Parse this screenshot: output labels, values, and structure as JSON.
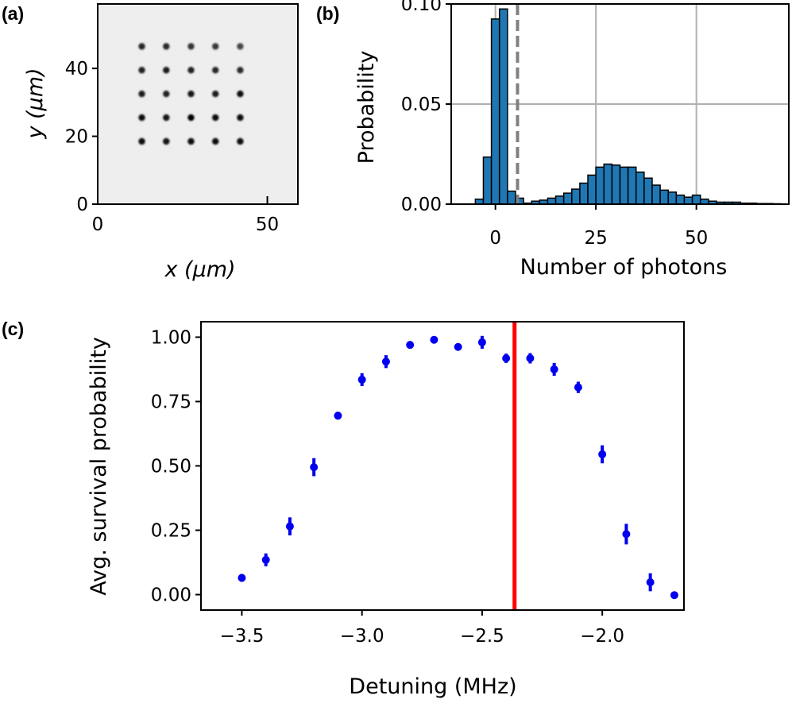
{
  "chart_data": [
    {
      "panel": "(a)",
      "type": "scatter",
      "title": "",
      "xlabel": "x (μm)",
      "ylabel": "y (μm)",
      "xlim": [
        0,
        59
      ],
      "ylim": [
        0,
        59
      ],
      "xticks": [
        0,
        50
      ],
      "yticks": [
        0,
        20,
        40
      ],
      "grid": false,
      "description_values": "5x5 atom fluorescence array",
      "x": [
        13,
        20.2,
        27.5,
        34.7,
        42
      ],
      "y": [
        18.5,
        25.5,
        32.5,
        39.5,
        46.5
      ],
      "intensity": [
        [
          0.92,
          0.85,
          0.95,
          0.9,
          0.95
        ],
        [
          0.9,
          0.85,
          0.98,
          0.9,
          0.95
        ],
        [
          0.8,
          0.75,
          0.85,
          0.78,
          0.9
        ],
        [
          0.75,
          0.8,
          0.75,
          0.72,
          0.7
        ],
        [
          0.72,
          0.7,
          0.62,
          0.6,
          0.5
        ]
      ]
    },
    {
      "panel": "(b)",
      "type": "bar",
      "title": "",
      "xlabel": "Number of photons",
      "ylabel": "Probability",
      "xlim": [
        -11,
        73
      ],
      "ylim": [
        0,
        0.1
      ],
      "xticks": [
        0,
        25,
        50
      ],
      "yticks": [
        "0.00",
        "0.05",
        "0.10"
      ],
      "grid": true,
      "threshold": 5.5,
      "bin_width": 2,
      "bin_starts": [
        -5,
        -3,
        -1,
        1,
        3,
        5,
        7,
        9,
        11,
        13,
        15,
        17,
        19,
        21,
        23,
        25,
        27,
        29,
        31,
        33,
        35,
        37,
        39,
        41,
        43,
        45,
        47,
        49,
        51,
        53,
        55,
        57,
        59,
        61,
        63,
        65,
        67,
        69
      ],
      "values": [
        0.0025,
        0.0235,
        0.0925,
        0.0975,
        0.0065,
        0.003,
        0.0005,
        0.0015,
        0.002,
        0.003,
        0.004,
        0.0055,
        0.0075,
        0.0105,
        0.0145,
        0.0185,
        0.02,
        0.0195,
        0.0185,
        0.0185,
        0.016,
        0.013,
        0.0095,
        0.007,
        0.006,
        0.0045,
        0.0035,
        0.0045,
        0.0025,
        0.0015,
        0.001,
        0.001,
        0.001,
        0.0005,
        0.0005,
        0.0003,
        0.0003,
        0.0002
      ]
    },
    {
      "panel": "(c)",
      "type": "scatter",
      "title": "",
      "xlabel": "Detuning (MHz)",
      "ylabel": "Avg. survival probability",
      "xlim": [
        -3.67,
        -1.66
      ],
      "ylim": [
        -0.06,
        1.06
      ],
      "xticks": [
        "−3.5",
        "−3.0",
        "−2.5",
        "−2.0"
      ],
      "xtick_values": [
        -3.5,
        -3.0,
        -2.5,
        -2.0
      ],
      "yticks": [
        "0.00",
        "0.25",
        "0.50",
        "0.75",
        "1.00"
      ],
      "ytick_values": [
        0,
        0.25,
        0.5,
        0.75,
        1.0
      ],
      "grid": false,
      "vline": -2.365,
      "x": [
        -3.5,
        -3.4,
        -3.3,
        -3.2,
        -3.1,
        -3.0,
        -2.9,
        -2.8,
        -2.7,
        -2.6,
        -2.5,
        -2.4,
        -2.3,
        -2.2,
        -2.1,
        -2.0,
        -1.9,
        -1.8,
        -1.7
      ],
      "y": [
        0.065,
        0.135,
        0.265,
        0.495,
        0.695,
        0.835,
        0.905,
        0.97,
        0.99,
        0.962,
        0.98,
        0.918,
        0.918,
        0.875,
        0.805,
        0.545,
        0.235,
        0.048,
        -0.002
      ],
      "yerr": [
        0.015,
        0.025,
        0.035,
        0.035,
        0.015,
        0.025,
        0.025,
        0.01,
        0.01,
        0.01,
        0.025,
        0.018,
        0.02,
        0.025,
        0.022,
        0.035,
        0.04,
        0.035,
        0.005
      ]
    }
  ],
  "colors": {
    "hist_fill": "#1f77b4",
    "hist_edge": "#000000",
    "grid": "#b0b0b0",
    "threshold": "#808080",
    "points": "#0000ee",
    "vline": "#ff0000"
  }
}
